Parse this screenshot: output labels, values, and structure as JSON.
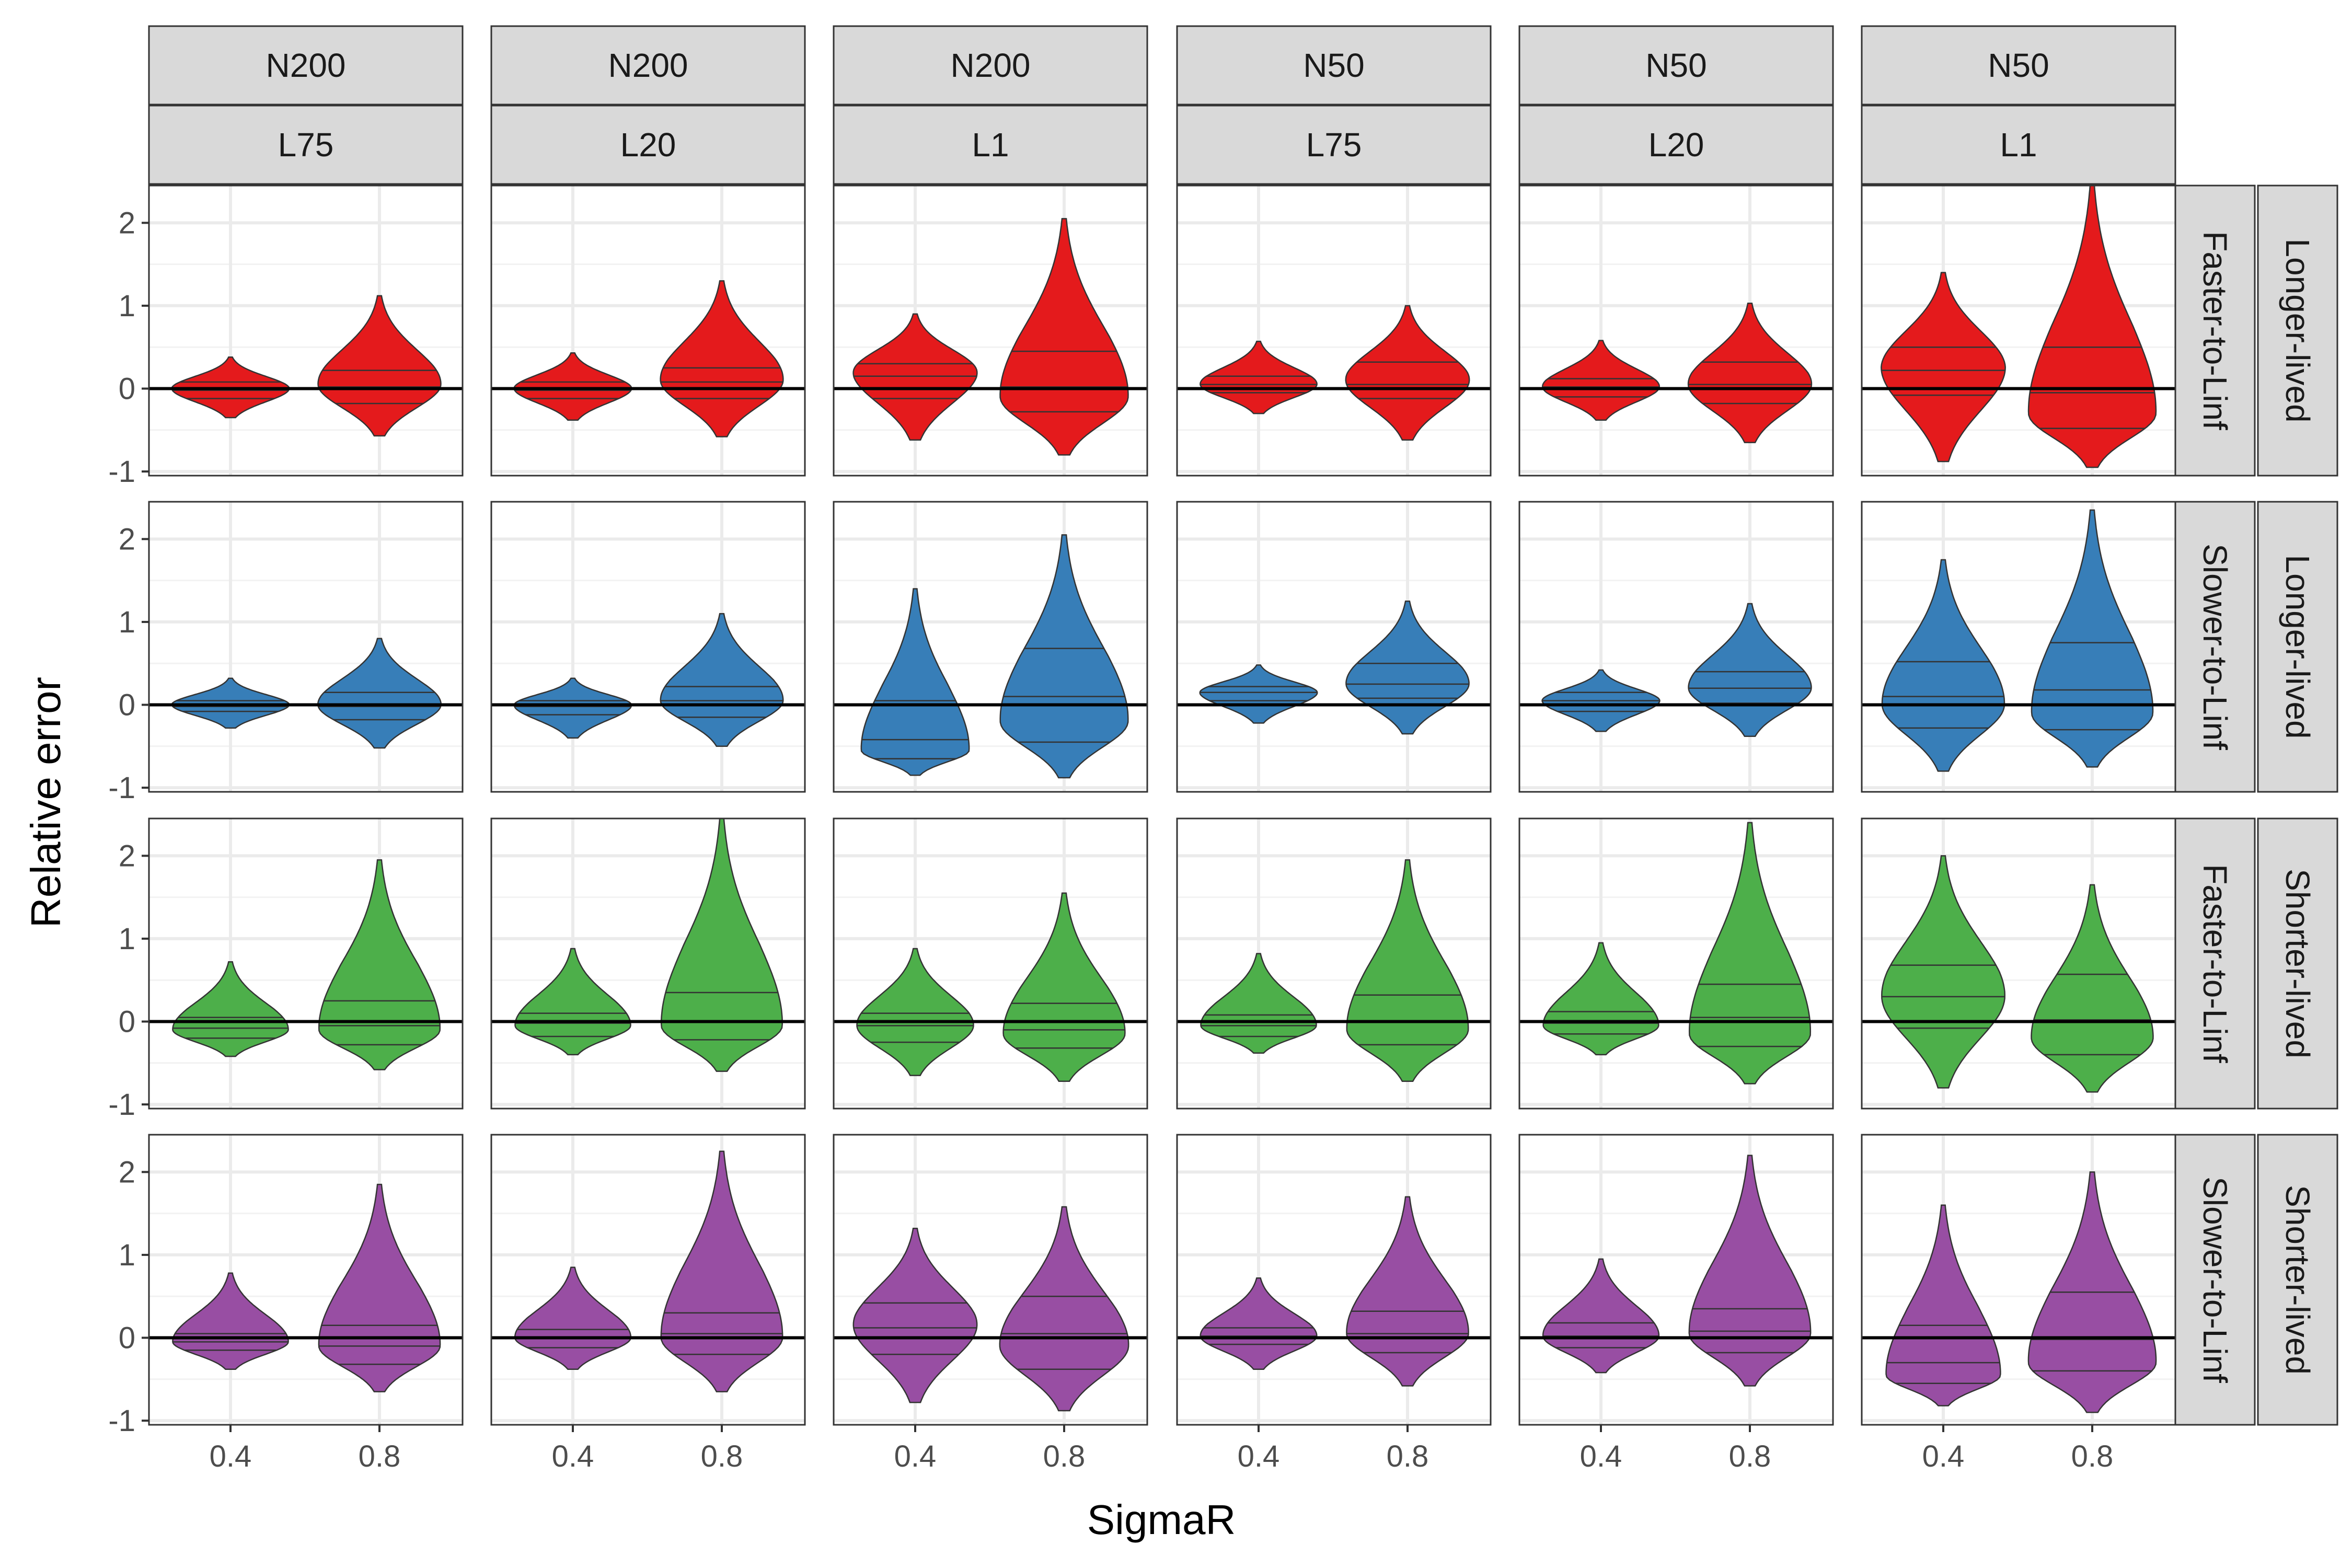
{
  "chart_data": {
    "type": "violin",
    "xlabel": "SigmaR",
    "ylabel": "Relative error",
    "x_categories": [
      "0.4",
      "0.8"
    ],
    "y_ticks": [
      -1,
      0,
      1,
      2
    ],
    "y_tick_labels": [
      "-1",
      "0",
      "1",
      "2"
    ],
    "ylim": [
      -1.05,
      2.45
    ],
    "grid": true,
    "reference_line_y": 0,
    "column_facets": [
      {
        "top": "N200",
        "bottom": "L75"
      },
      {
        "top": "N200",
        "bottom": "L20"
      },
      {
        "top": "N200",
        "bottom": "L1"
      },
      {
        "top": "N50",
        "bottom": "L75"
      },
      {
        "top": "N50",
        "bottom": "L20"
      },
      {
        "top": "N50",
        "bottom": "L1"
      }
    ],
    "row_facets": [
      {
        "inner": "Faster-to-Linf",
        "outer": "Longer-lived",
        "color": "#e41a1c"
      },
      {
        "inner": "Slower-to-Linf",
        "outer": "Longer-lived",
        "color": "#377eb8"
      },
      {
        "inner": "Faster-to-Linf",
        "outer": "Shorter-lived",
        "color": "#4daf4a"
      },
      {
        "inner": "Slower-to-Linf",
        "outer": "Shorter-lived",
        "color": "#984ea3"
      }
    ],
    "violins": [
      [
        [
          {
            "min": -0.35,
            "max": 0.38,
            "q": [
              -0.12,
              -0.02,
              0.08
            ],
            "mode": 0.0,
            "maxw": 0.9
          },
          {
            "min": -0.57,
            "max": 1.12,
            "q": [
              -0.18,
              0.02,
              0.22
            ],
            "mode": 0.05,
            "maxw": 0.95
          }
        ],
        [
          {
            "min": -0.38,
            "max": 0.43,
            "q": [
              -0.12,
              -0.02,
              0.08
            ],
            "mode": 0.0,
            "maxw": 0.9
          },
          {
            "min": -0.58,
            "max": 1.3,
            "q": [
              -0.12,
              0.08,
              0.25
            ],
            "mode": 0.1,
            "maxw": 0.95
          }
        ],
        [
          {
            "min": -0.62,
            "max": 0.9,
            "q": [
              -0.12,
              0.15,
              0.3
            ],
            "mode": 0.2,
            "maxw": 0.95
          },
          {
            "min": -0.8,
            "max": 2.05,
            "q": [
              -0.28,
              0.02,
              0.45
            ],
            "mode": -0.1,
            "maxw": 1.0
          }
        ],
        [
          {
            "min": -0.3,
            "max": 0.57,
            "q": [
              -0.05,
              0.05,
              0.15
            ],
            "mode": 0.05,
            "maxw": 0.9
          },
          {
            "min": -0.62,
            "max": 1.0,
            "q": [
              -0.12,
              0.05,
              0.32
            ],
            "mode": 0.1,
            "maxw": 0.95
          }
        ],
        [
          {
            "min": -0.38,
            "max": 0.58,
            "q": [
              -0.1,
              0.02,
              0.12
            ],
            "mode": 0.02,
            "maxw": 0.9
          },
          {
            "min": -0.65,
            "max": 1.03,
            "q": [
              -0.18,
              0.05,
              0.32
            ],
            "mode": 0.05,
            "maxw": 0.95
          }
        ],
        [
          {
            "min": -0.88,
            "max": 1.4,
            "q": [
              -0.08,
              0.22,
              0.5
            ],
            "mode": 0.25,
            "maxw": 0.95
          },
          {
            "min": -0.95,
            "max": 2.45,
            "q": [
              -0.48,
              -0.05,
              0.5
            ],
            "mode": -0.3,
            "maxw": 1.0
          }
        ]
      ],
      [
        [
          {
            "min": -0.28,
            "max": 0.32,
            "q": [
              -0.08,
              -0.02,
              0.05
            ],
            "mode": 0.0,
            "maxw": 0.9
          },
          {
            "min": -0.52,
            "max": 0.8,
            "q": [
              -0.18,
              -0.02,
              0.15
            ],
            "mode": 0.0,
            "maxw": 0.95
          }
        ],
        [
          {
            "min": -0.4,
            "max": 0.32,
            "q": [
              -0.12,
              -0.02,
              0.05
            ],
            "mode": 0.0,
            "maxw": 0.9
          },
          {
            "min": -0.5,
            "max": 1.1,
            "q": [
              -0.15,
              0.05,
              0.22
            ],
            "mode": 0.05,
            "maxw": 0.95
          }
        ],
        [
          {
            "min": -0.85,
            "max": 1.4,
            "q": [
              -0.65,
              -0.42,
              0.05
            ],
            "mode": -0.55,
            "maxw": 0.85
          },
          {
            "min": -0.88,
            "max": 2.05,
            "q": [
              -0.45,
              0.1,
              0.68
            ],
            "mode": -0.2,
            "maxw": 1.0
          }
        ],
        [
          {
            "min": -0.22,
            "max": 0.48,
            "q": [
              0.05,
              0.15,
              0.22
            ],
            "mode": 0.15,
            "maxw": 0.9
          },
          {
            "min": -0.35,
            "max": 1.25,
            "q": [
              0.08,
              0.25,
              0.5
            ],
            "mode": 0.25,
            "maxw": 0.95
          }
        ],
        [
          {
            "min": -0.32,
            "max": 0.42,
            "q": [
              -0.08,
              0.05,
              0.15
            ],
            "mode": 0.05,
            "maxw": 0.9
          },
          {
            "min": -0.38,
            "max": 1.22,
            "q": [
              0.02,
              0.2,
              0.4
            ],
            "mode": 0.2,
            "maxw": 0.95
          }
        ],
        [
          {
            "min": -0.8,
            "max": 1.75,
            "q": [
              -0.28,
              0.1,
              0.52
            ],
            "mode": 0.0,
            "maxw": 0.95
          },
          {
            "min": -0.75,
            "max": 2.35,
            "q": [
              -0.3,
              0.18,
              0.75
            ],
            "mode": -0.1,
            "maxw": 0.95
          }
        ]
      ],
      [
        [
          {
            "min": -0.42,
            "max": 0.72,
            "q": [
              -0.2,
              -0.08,
              0.05
            ],
            "mode": -0.1,
            "maxw": 0.9
          },
          {
            "min": -0.58,
            "max": 1.95,
            "q": [
              -0.28,
              -0.05,
              0.25
            ],
            "mode": -0.1,
            "maxw": 0.95
          }
        ],
        [
          {
            "min": -0.4,
            "max": 0.88,
            "q": [
              -0.18,
              -0.02,
              0.1
            ],
            "mode": -0.05,
            "maxw": 0.9
          },
          {
            "min": -0.6,
            "max": 2.45,
            "q": [
              -0.22,
              0.0,
              0.35
            ],
            "mode": -0.05,
            "maxw": 0.95
          }
        ],
        [
          {
            "min": -0.65,
            "max": 0.88,
            "q": [
              -0.25,
              -0.05,
              0.1
            ],
            "mode": -0.05,
            "maxw": 0.9
          },
          {
            "min": -0.72,
            "max": 1.55,
            "q": [
              -0.32,
              -0.1,
              0.22
            ],
            "mode": -0.15,
            "maxw": 0.95
          }
        ],
        [
          {
            "min": -0.38,
            "max": 0.82,
            "q": [
              -0.18,
              -0.05,
              0.08
            ],
            "mode": -0.05,
            "maxw": 0.9
          },
          {
            "min": -0.72,
            "max": 1.95,
            "q": [
              -0.28,
              0.0,
              0.32
            ],
            "mode": -0.1,
            "maxw": 0.95
          }
        ],
        [
          {
            "min": -0.4,
            "max": 0.95,
            "q": [
              -0.15,
              -0.02,
              0.12
            ],
            "mode": -0.05,
            "maxw": 0.9
          },
          {
            "min": -0.75,
            "max": 2.4,
            "q": [
              -0.3,
              0.05,
              0.45
            ],
            "mode": -0.15,
            "maxw": 0.95
          }
        ],
        [
          {
            "min": -0.8,
            "max": 2.0,
            "q": [
              -0.08,
              0.3,
              0.68
            ],
            "mode": 0.3,
            "maxw": 0.95
          },
          {
            "min": -0.85,
            "max": 1.65,
            "q": [
              -0.4,
              0.02,
              0.57
            ],
            "mode": -0.2,
            "maxw": 0.95
          }
        ]
      ],
      [
        [
          {
            "min": -0.38,
            "max": 0.78,
            "q": [
              -0.15,
              -0.05,
              0.05
            ],
            "mode": -0.05,
            "maxw": 0.9
          },
          {
            "min": -0.65,
            "max": 1.85,
            "q": [
              -0.32,
              -0.1,
              0.15
            ],
            "mode": -0.1,
            "maxw": 0.95
          }
        ],
        [
          {
            "min": -0.38,
            "max": 0.85,
            "q": [
              -0.12,
              0.0,
              0.1
            ],
            "mode": 0.0,
            "maxw": 0.9
          },
          {
            "min": -0.65,
            "max": 2.25,
            "q": [
              -0.2,
              0.05,
              0.3
            ],
            "mode": 0.0,
            "maxw": 0.95
          }
        ],
        [
          {
            "min": -0.78,
            "max": 1.32,
            "q": [
              -0.2,
              0.12,
              0.42
            ],
            "mode": 0.15,
            "maxw": 0.95
          },
          {
            "min": -0.88,
            "max": 1.58,
            "q": [
              -0.38,
              0.05,
              0.5
            ],
            "mode": -0.1,
            "maxw": 1.0
          }
        ],
        [
          {
            "min": -0.38,
            "max": 0.72,
            "q": [
              -0.08,
              0.02,
              0.12
            ],
            "mode": 0.02,
            "maxw": 0.9
          },
          {
            "min": -0.58,
            "max": 1.7,
            "q": [
              -0.18,
              0.05,
              0.32
            ],
            "mode": 0.05,
            "maxw": 0.95
          }
        ],
        [
          {
            "min": -0.42,
            "max": 0.95,
            "q": [
              -0.12,
              0.02,
              0.18
            ],
            "mode": 0.02,
            "maxw": 0.9
          },
          {
            "min": -0.58,
            "max": 2.2,
            "q": [
              -0.18,
              0.08,
              0.35
            ],
            "mode": 0.05,
            "maxw": 0.95
          }
        ],
        [
          {
            "min": -0.82,
            "max": 1.6,
            "q": [
              -0.55,
              -0.3,
              0.15
            ],
            "mode": -0.45,
            "maxw": 0.9
          },
          {
            "min": -0.9,
            "max": 2.0,
            "q": [
              -0.4,
              -0.02,
              0.55
            ],
            "mode": -0.3,
            "maxw": 1.0
          }
        ]
      ]
    ]
  }
}
